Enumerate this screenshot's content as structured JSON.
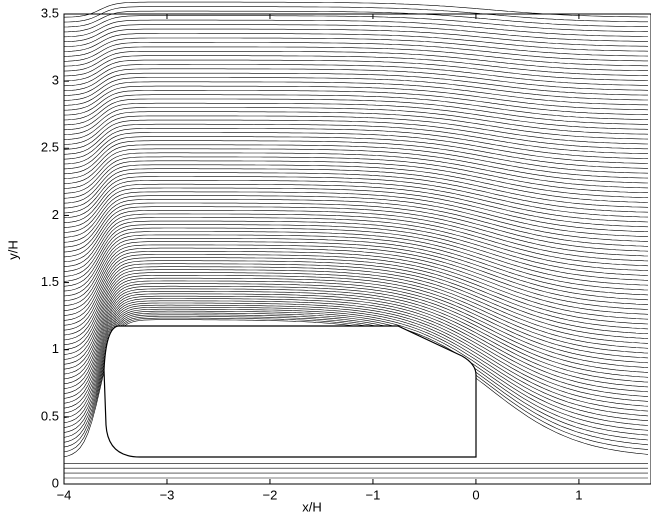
{
  "chart_data": {
    "type": "streamline",
    "xlabel": "x/H",
    "ylabel": "y/H",
    "xlim": [
      -4,
      1.7
    ],
    "ylim": [
      0,
      3.5
    ],
    "xticks": [
      {
        "value": -4,
        "label": "−4"
      },
      {
        "value": -3,
        "label": "−3"
      },
      {
        "value": -2,
        "label": "−2"
      },
      {
        "value": -1,
        "label": "−1"
      },
      0,
      1
    ],
    "yticks": [
      0,
      0.5,
      1,
      1.5,
      2,
      2.5,
      3,
      3.5
    ],
    "color": "#000000"
  }
}
